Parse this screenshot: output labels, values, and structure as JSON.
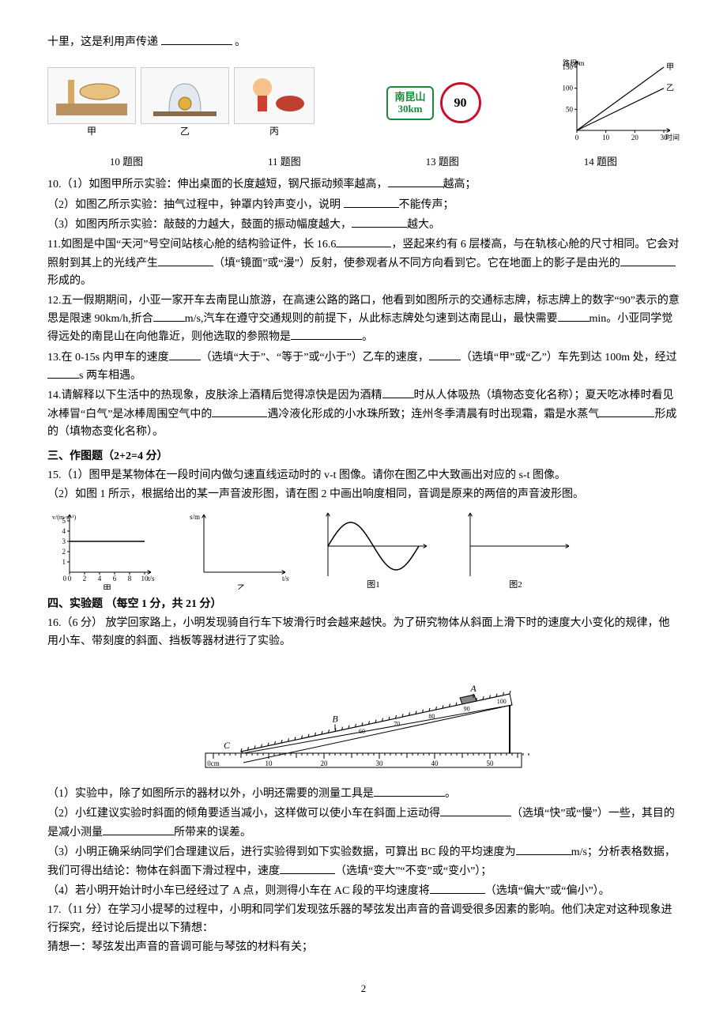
{
  "intro_line": "十里，这是利用声传递",
  "intro_end": "。",
  "row1_labels": {
    "a": "10 题图",
    "b": "11 题图",
    "c": "13 题图",
    "d": "14 题图"
  },
  "sub_labels": {
    "jia": "甲",
    "yi": "乙",
    "bing": "丙"
  },
  "sign": {
    "top": "南昆山",
    "bottom": "30km",
    "circle": "90"
  },
  "chart14": {
    "type": "line",
    "xlabel": "时间/s",
    "ylabel": "路程/m",
    "xlim": [
      0,
      30
    ],
    "ylim": [
      0,
      150
    ],
    "xtick_step": 10,
    "ytick_step": 50,
    "series": [
      {
        "name": "甲",
        "points": [
          [
            0,
            0
          ],
          [
            30,
            150
          ]
        ],
        "color": "#000"
      },
      {
        "name": "乙",
        "points": [
          [
            0,
            0
          ],
          [
            30,
            100
          ]
        ],
        "color": "#000"
      }
    ],
    "label_fontsize": 10,
    "background": "#ffffff",
    "axis_color": "#000000"
  },
  "q10": {
    "stem1a": "10.（1）如图甲所示实验：伸出桌面的长度越短，钢尺振动频率越高，",
    "stem1b": "越高；",
    "stem2a": "（2）如图乙所示实验：抽气过程中，钟罩内铃声变小，说明 ",
    "stem2b": "不能传声；",
    "stem3a": "（3）如图丙所示实验：敲鼓的力越大，鼓面的振动幅度越大，",
    "stem3b": "越大。"
  },
  "q11": {
    "a": "11.如图是中国“天河”号空间站核心舱的结构验证件，长 16.6",
    "b": "，竖起来约有 6 层楼高，与在轨核心舱的尺寸相同。它会对照射到其上的光线产生",
    "c": "（填“镜面”或“漫”）反射，使参观者从不同方向看到它。它在地面上的影子是由光的",
    "d": "形成的。"
  },
  "q12": {
    "a": "12.五一假期期间，小亚一家开车去南昆山旅游，在高速公路的路口，他看到如图所示的交通标志牌，标志牌上的数字“90”表示的意思是限速 90km/h,折合",
    "b": "m/s,汽车在遵守交通规则的前提下，从此标志牌处匀速到达南昆山，最快需要",
    "c": "min。小亚同学觉得远处的南昆山在向他靠近，则他选取的参照物是",
    "d": "。"
  },
  "q13": {
    "a": "13.在 0-15s 内甲车的速度",
    "b": "（选填“大于”、“等于”或“小于”）乙车的速度，",
    "c": "（选填“甲”或“乙”）车先到达 100m 处，经过",
    "d": "s 两车相遇。"
  },
  "q14": {
    "a": "14.请解释以下生活中的热现象，皮肤涂上酒精后觉得凉快是因为酒精",
    "b": "时从人体吸热（填物态变化名称）；夏天吃冰棒时看见冰棒冒“白气”是冰棒周围空气中的",
    "c": "遇冷液化形成的小水珠所致；连州冬季清晨有时出现霜，霜是水蒸气",
    "d": "形成的（填物态变化名称）。"
  },
  "sec3_heading": "三、作图题（2+2=4 分）",
  "q15": {
    "line1": "15.（1）图甲是某物体在一段时间内做匀速直线运动时的 v-t 图像。请你在图乙中大致画出对应的 s-t 图像。",
    "line2": "（2）如图 1 所示，根据给出的某一声音波形图，请在图 2 中画出响度相同，音调是原来的两倍的声音波形图。"
  },
  "chart15a": {
    "type": "line",
    "xlabel": "t/s",
    "ylabel": "v/(m·s⁻¹)",
    "xticks": [
      0,
      2,
      4,
      6,
      8,
      10
    ],
    "yticks": [
      0,
      1,
      2,
      3,
      4,
      5
    ],
    "series": [
      {
        "points": [
          [
            0,
            3
          ],
          [
            10,
            3
          ]
        ],
        "color": "#000"
      }
    ],
    "caption": "甲",
    "axis_color": "#000",
    "label_fontsize": 10
  },
  "chart15b": {
    "type": "axes-only",
    "xlabel": "t/s",
    "ylabel": "s/m",
    "caption": "乙",
    "axis_color": "#000",
    "label_fontsize": 10
  },
  "chart15c": {
    "type": "wave",
    "cycles": 1,
    "amplitude": 1,
    "caption": "图1",
    "axis_color": "#000"
  },
  "chart15d": {
    "type": "axes-only",
    "caption": "图2",
    "axis_color": "#000"
  },
  "sec4_heading": "四、实验题 （每空 1 分，共 21 分）",
  "q16": {
    "stem": "16.（6 分）  放学回家路上，小明发现骑自行车下坡滑行时会越来越快。为了研究物体从斜面上滑下时的速度大小变化的规律，他用小车、带刻度的斜面、挡板等器材进行了实验。",
    "p1a": "（1）实验中，除了如图所示的器材以外，小明还需要的测量工具是",
    "p1b": "。",
    "p2a": "（2）小红建议实验时斜面的倾角要适当减小，这样做可以使小车在斜面上运动得",
    "p2b": "（选填“快”或“慢”）一些，其目的是减小测量",
    "p2c": "所带来的误差。",
    "p3a": "（3）小明正确采纳同学们合理建议后，进行实验得到如下实验数据，可算出 BC 段的平均速度为",
    "p3b": "m/s；分析表格数据，我们可得出结论：物体在斜面下滑过程中，速度",
    "p3c": "（选填“变大”“不变”或“变小”）；",
    "p4a": "（4）若小明开始计时小车已经经过了 A 点，则测得小车在 AC 段的平均速度将",
    "p4b": "（选填“偏大”或“偏小”）。"
  },
  "ruler": {
    "top_marks": [
      "60",
      "70",
      "80",
      "90",
      "100"
    ],
    "bottom_marks": [
      "0cm",
      "10",
      "20",
      "30",
      "40",
      "50"
    ],
    "label_A": "A",
    "label_B": "B",
    "label_C": "C"
  },
  "q17": {
    "stem": "17.（11 分）在学习小提琴的过程中，小明和同学们发现弦乐器的琴弦发出声音的音调受很多因素的影响。他们决定对这种现象进行探究，经讨论后提出以下猜想：",
    "g1": "猜想一：琴弦发出声音的音调可能与琴弦的材料有关；"
  },
  "page": "2"
}
